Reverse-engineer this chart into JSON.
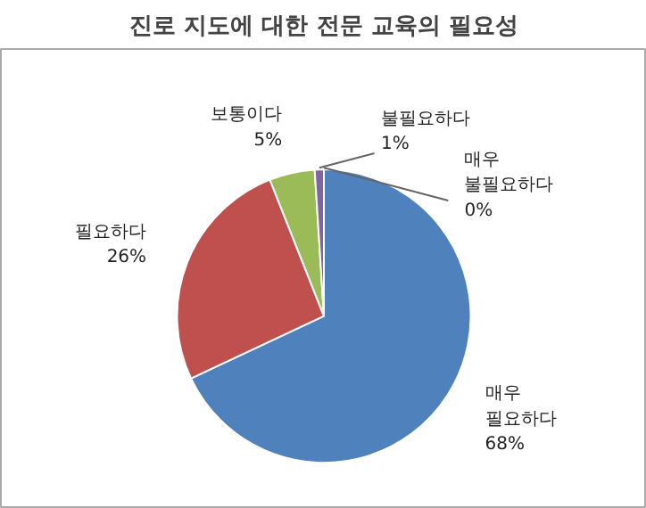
{
  "chart_data": {
    "type": "pie",
    "title": "진로 지도에 대한 전문 교육의 필요성",
    "categories": [
      "매우 필요하다",
      "필요하다",
      "보통이다",
      "불필요하다",
      "매우 불필요하다"
    ],
    "values": [
      68,
      26,
      5,
      1,
      0
    ],
    "colors": [
      "#4f81bd",
      "#c0504d",
      "#9bbb59",
      "#8064a2",
      "#4bacc6"
    ],
    "value_labels": [
      "68%",
      "26%",
      "5%",
      "1%",
      "0%"
    ]
  }
}
